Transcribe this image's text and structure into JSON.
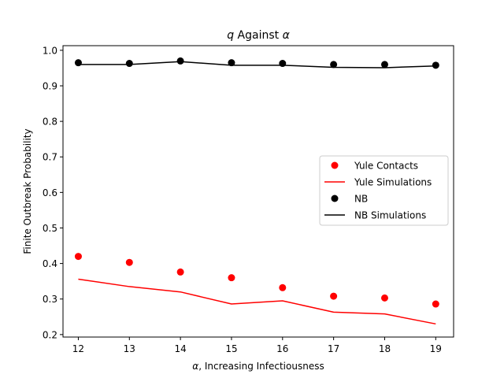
{
  "chart_data": {
    "type": "line",
    "title_symbol_q": "q",
    "title_middle": " Against ",
    "title_symbol_alpha": "α",
    "xlabel_symbol": "α",
    "xlabel_text": ", Increasing Infectiousness",
    "ylabel": "Finite Outbreak Probability",
    "xlim": [
      11.7,
      19.35
    ],
    "ylim": [
      0.193,
      1.013
    ],
    "xticks": [
      12,
      13,
      14,
      15,
      16,
      17,
      18,
      19
    ],
    "xtick_labels": [
      "12",
      "13",
      "14",
      "15",
      "16",
      "17",
      "18",
      "19"
    ],
    "yticks": [
      0.2,
      0.3,
      0.4,
      0.5,
      0.6,
      0.7,
      0.8,
      0.9,
      1.0
    ],
    "ytick_labels": [
      "0.2",
      "0.3",
      "0.4",
      "0.5",
      "0.6",
      "0.7",
      "0.8",
      "0.9",
      "1.0"
    ],
    "grid": false,
    "legend_position": "center-right",
    "x": [
      12,
      13,
      14,
      15,
      16,
      17,
      18,
      19
    ],
    "series": [
      {
        "name": "Yule Contacts",
        "kind": "scatter",
        "color": "#ff0000",
        "values": [
          0.42,
          0.403,
          0.376,
          0.36,
          0.332,
          0.308,
          0.303,
          0.286
        ]
      },
      {
        "name": "Yule Simulations",
        "kind": "line",
        "color": "#ff0000",
        "values": [
          0.356,
          0.335,
          0.32,
          0.286,
          0.295,
          0.263,
          0.258,
          0.23
        ]
      },
      {
        "name": "NB",
        "kind": "scatter",
        "color": "#000000",
        "values": [
          0.965,
          0.963,
          0.97,
          0.965,
          0.963,
          0.96,
          0.96,
          0.958
        ]
      },
      {
        "name": "NB Simulations",
        "kind": "line",
        "color": "#000000",
        "values": [
          0.96,
          0.96,
          0.968,
          0.958,
          0.958,
          0.952,
          0.951,
          0.956
        ]
      }
    ]
  }
}
